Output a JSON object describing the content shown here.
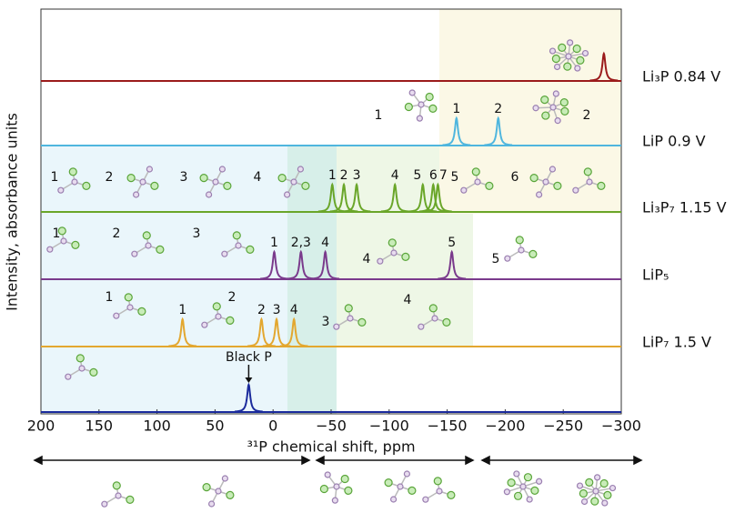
{
  "chart_data": {
    "type": "spectra",
    "x_label": "³¹P chemical shift, ppm",
    "y_label": "Intensity, absorbance units",
    "xlim": [
      200,
      -300
    ],
    "xticks": [
      200,
      150,
      100,
      50,
      0,
      {
        "value": -50,
        "label": "−50"
      },
      {
        "value": -100,
        "label": "−100"
      },
      {
        "value": -150,
        "label": "−150"
      },
      {
        "value": -200,
        "label": "−200"
      },
      {
        "value": -250,
        "label": "−250"
      },
      {
        "value": -300,
        "label": "−300"
      }
    ],
    "series": [
      {
        "name": "Li₃P 0.84 V",
        "color": "#9b1b1b",
        "peaks": [
          -285
        ],
        "peak_labels": [
          null
        ],
        "structure_labels": []
      },
      {
        "name": "LiP 0.9 V",
        "color": "#4fb6de",
        "peaks": [
          -158,
          -194
        ],
        "peak_labels": [
          "1",
          "2"
        ],
        "structure_labels": [
          "1",
          "2"
        ]
      },
      {
        "name": "Li₃P₇ 1.15 V",
        "color": "#6aa629",
        "peaks": [
          -51,
          -61,
          -72,
          -105,
          -129,
          -138,
          -142
        ],
        "peak_labels": [
          "1",
          "2",
          "3",
          "4",
          "5",
          "6",
          "7"
        ],
        "structure_labels": [
          "1",
          "2",
          "3",
          "4",
          "5",
          "6"
        ]
      },
      {
        "name": "LiP₅",
        "color": "#7a3a8c",
        "peaks": [
          -1,
          -24,
          -45,
          -154
        ],
        "peak_labels": [
          "1",
          "2,3",
          "4",
          "5"
        ],
        "structure_labels": [
          "1",
          "2",
          "3",
          "4",
          "5"
        ]
      },
      {
        "name": "LiP₇ 1.5 V",
        "color": "#e3a72f",
        "peaks": [
          78,
          10,
          -3,
          -18
        ],
        "peak_labels": [
          "1",
          "2",
          "3",
          "4"
        ],
        "structure_labels": [
          "1",
          "2",
          "3",
          "4"
        ]
      },
      {
        "name": "Black P",
        "color": "#1a2a9c",
        "peaks": [
          21
        ],
        "peak_labels": [
          "Black P"
        ],
        "structure_labels": []
      }
    ]
  }
}
